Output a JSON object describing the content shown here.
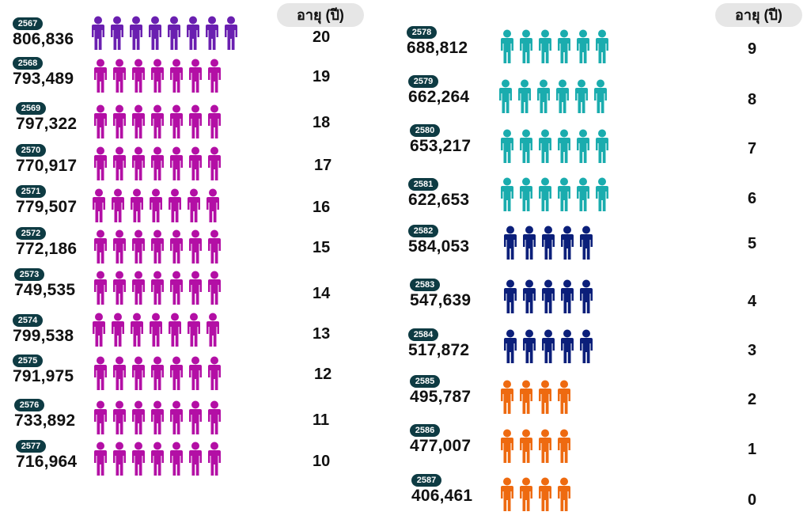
{
  "age_header_label": "อายุ (ปี)",
  "colors": {
    "purple": "#6a1fb0",
    "magenta": "#b30fa5",
    "teal": "#1aacae",
    "navy": "#0b1f7a",
    "orange": "#ee6a10",
    "badge": "#0e3b43"
  },
  "chart_data": {
    "type": "table",
    "columns": [
      "year",
      "population",
      "age"
    ],
    "rows": [
      {
        "year": "2567",
        "population": "806,836",
        "age": "20",
        "icons": 8,
        "color": "purple"
      },
      {
        "year": "2568",
        "population": "793,489",
        "age": "19",
        "icons": 7,
        "color": "magenta"
      },
      {
        "year": "2569",
        "population": "797,322",
        "age": "18",
        "icons": 7,
        "color": "magenta"
      },
      {
        "year": "2570",
        "population": "770,917",
        "age": "17",
        "icons": 7,
        "color": "magenta"
      },
      {
        "year": "2571",
        "population": "779,507",
        "age": "16",
        "icons": 7,
        "color": "magenta"
      },
      {
        "year": "2572",
        "population": "772,186",
        "age": "15",
        "icons": 7,
        "color": "magenta"
      },
      {
        "year": "2573",
        "population": "749,535",
        "age": "14",
        "icons": 7,
        "color": "magenta"
      },
      {
        "year": "2574",
        "population": "799,538",
        "age": "13",
        "icons": 7,
        "color": "magenta"
      },
      {
        "year": "2575",
        "population": "791,975",
        "age": "12",
        "icons": 7,
        "color": "magenta"
      },
      {
        "year": "2576",
        "population": "733,892",
        "age": "11",
        "icons": 7,
        "color": "magenta"
      },
      {
        "year": "2577",
        "population": "716,964",
        "age": "10",
        "icons": 7,
        "color": "magenta"
      },
      {
        "year": "2578",
        "population": "688,812",
        "age": "9",
        "icons": 6,
        "color": "teal"
      },
      {
        "year": "2579",
        "population": "662,264",
        "age": "8",
        "icons": 6,
        "color": "teal"
      },
      {
        "year": "2580",
        "population": "653,217",
        "age": "7",
        "icons": 6,
        "color": "teal"
      },
      {
        "year": "2581",
        "population": "622,653",
        "age": "6",
        "icons": 6,
        "color": "teal"
      },
      {
        "year": "2582",
        "population": "584,053",
        "age": "5",
        "icons": 5,
        "color": "navy"
      },
      {
        "year": "2583",
        "population": "547,639",
        "age": "4",
        "icons": 5,
        "color": "navy"
      },
      {
        "year": "2584",
        "population": "517,872",
        "age": "3",
        "icons": 5,
        "color": "navy"
      },
      {
        "year": "2585",
        "population": "495,787",
        "age": "2",
        "icons": 4,
        "color": "orange"
      },
      {
        "year": "2586",
        "population": "477,007",
        "age": "1",
        "icons": 4,
        "color": "orange"
      },
      {
        "year": "2587",
        "population": "406,461",
        "age": "0",
        "icons": 4,
        "color": "orange"
      }
    ]
  }
}
